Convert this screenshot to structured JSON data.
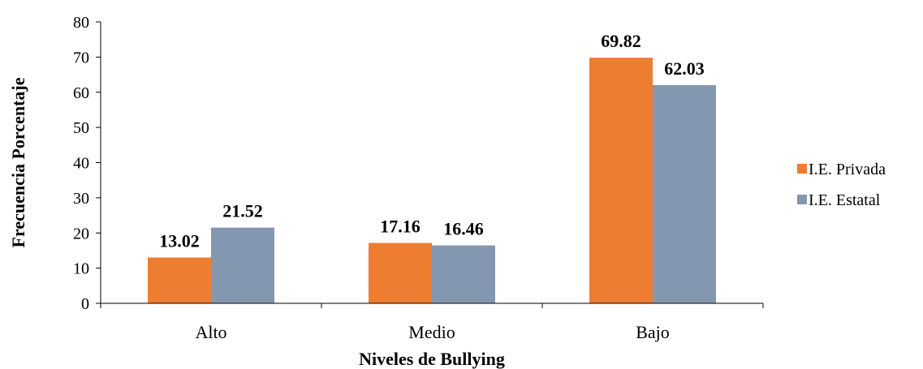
{
  "chart_data": {
    "type": "bar",
    "title": "",
    "xlabel": "Niveles de Bullying",
    "ylabel": "Frecuencia  Porcentaje",
    "categories": [
      "Alto",
      "Medio",
      "Bajo"
    ],
    "series": [
      {
        "name": "I.E. Privada",
        "values": [
          13.02,
          17.16,
          69.82
        ],
        "labels": [
          "13.02",
          "17.16",
          "69.82"
        ],
        "color": "#ED7D31"
      },
      {
        "name": "I.E. Estatal",
        "values": [
          21.52,
          16.46,
          62.03
        ],
        "labels": [
          "21.52",
          "16.46",
          "62.03"
        ],
        "color": "#8497B0"
      }
    ],
    "ylim": [
      0,
      80
    ],
    "yticks": [
      "0",
      "10",
      "20",
      "30",
      "40",
      "50",
      "60",
      "70",
      "80"
    ],
    "grid": false,
    "legend_position": "right"
  }
}
